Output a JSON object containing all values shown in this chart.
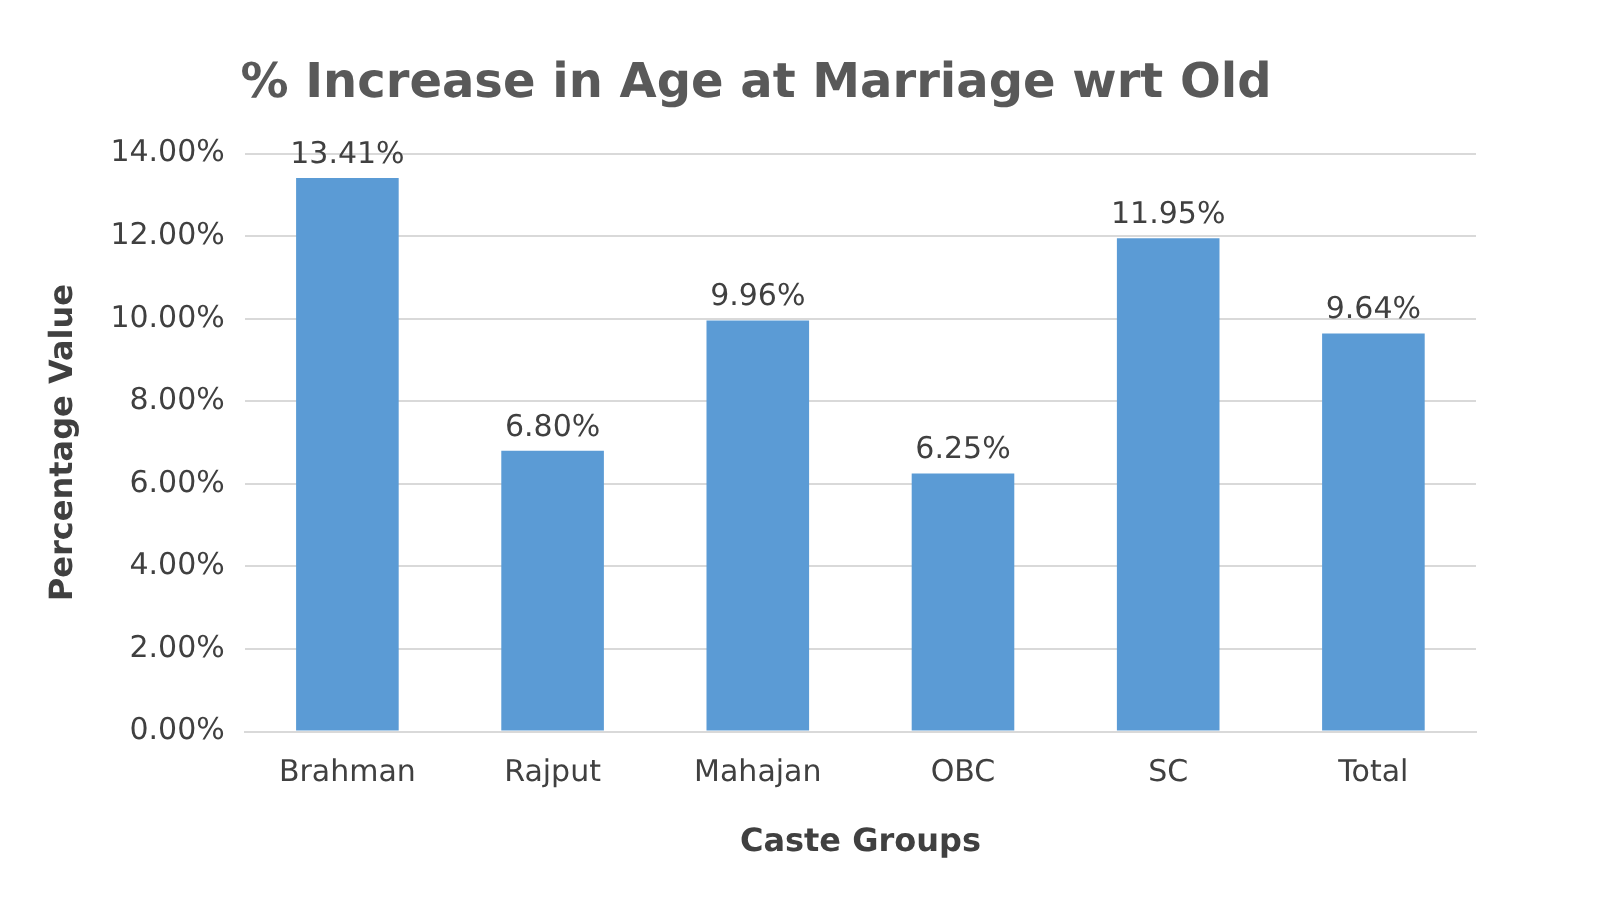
{
  "chart_data": {
    "type": "bar",
    "title": "% Increase in Age at Marriage wrt Old",
    "xlabel": "Caste Groups",
    "ylabel": "Percentage Value",
    "categories": [
      "Brahman",
      "Rajput",
      "Mahajan",
      "OBC",
      "SC",
      "Total"
    ],
    "values": [
      13.41,
      6.8,
      9.96,
      6.25,
      11.95,
      9.64
    ],
    "value_labels": [
      "13.41%",
      "6.80%",
      "9.96%",
      "6.25%",
      "11.95%",
      "9.64%"
    ],
    "color": "#5b9bd5",
    "ylim": [
      0,
      14
    ],
    "yticks": [
      {
        "value": 0,
        "label": "0.00%"
      },
      {
        "value": 2,
        "label": "2.00%"
      },
      {
        "value": 4,
        "label": "4.00%"
      },
      {
        "value": 6,
        "label": "6.00%"
      },
      {
        "value": 8,
        "label": "8.00%"
      },
      {
        "value": 10,
        "label": "10.00%"
      },
      {
        "value": 12,
        "label": "12.00%"
      },
      {
        "value": 14,
        "label": "14.00%"
      }
    ],
    "grid": "y",
    "legend": false
  }
}
